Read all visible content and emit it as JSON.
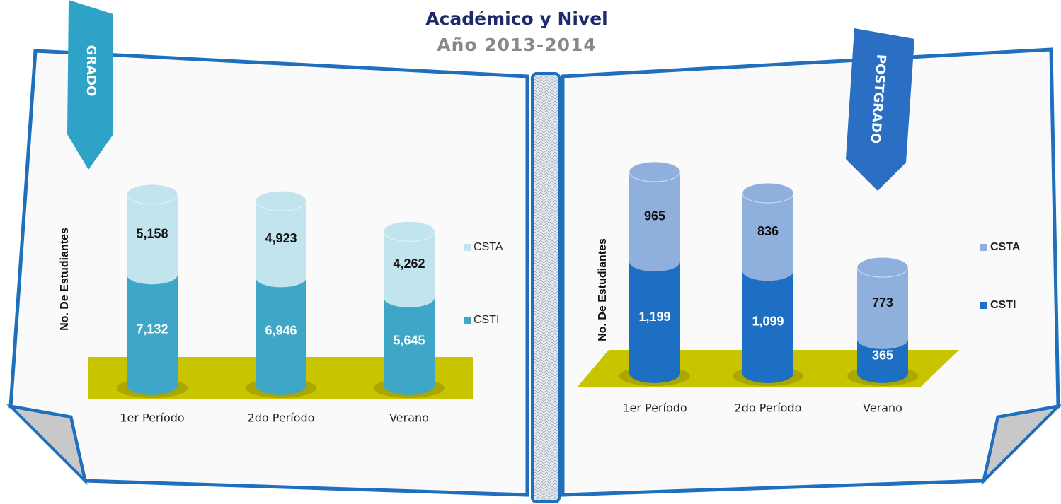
{
  "title": "Académico y Nivel",
  "subtitle": "Año 2013-2014",
  "chart_data": [
    {
      "type": "bar",
      "stacked": true,
      "banner": "GRADO",
      "ylabel": "No. De Estudiantes",
      "categories": [
        "1er Período",
        "2do Período",
        "Verano"
      ],
      "series": [
        {
          "name": "CSTI",
          "color": "#3ea6c6",
          "values": [
            7132,
            6946,
            5645
          ],
          "value_labels": [
            "7,132",
            "6,946",
            "5,645"
          ]
        },
        {
          "name": "CSTA",
          "color": "#c2e4ef",
          "values": [
            5158,
            4923,
            4262
          ],
          "value_labels": [
            "5,158",
            "4,923",
            "4,262"
          ]
        }
      ]
    },
    {
      "type": "bar",
      "stacked": true,
      "banner": "POSTGRADO",
      "ylabel": "No. De Estudiantes",
      "categories": [
        "1er Período",
        "2do Período",
        "Verano"
      ],
      "series": [
        {
          "name": "CSTI",
          "color": "#1c6fc2",
          "values": [
            1199,
            1099,
            365
          ],
          "value_labels": [
            "1,199",
            "1,099",
            "365"
          ]
        },
        {
          "name": "CSTA",
          "color": "#8fb0dc",
          "values": [
            965,
            836,
            773
          ],
          "value_labels": [
            "965",
            "836",
            "773"
          ]
        }
      ]
    }
  ]
}
